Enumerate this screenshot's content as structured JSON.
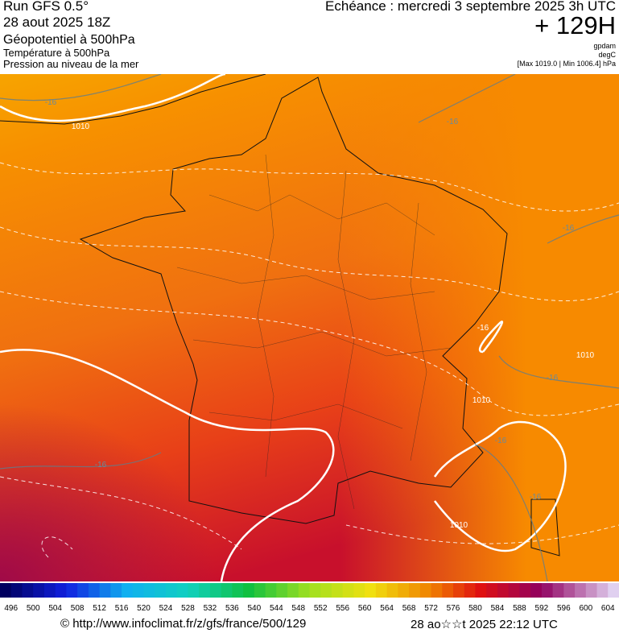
{
  "header": {
    "run": "Run GFS 0.5°",
    "date": "28 aout 2025 18Z",
    "field1": "Géopotentiel à 500hPa",
    "field2": "Température à 500hPa",
    "field3": "Pression au niveau de la mer",
    "echeance": "Echéance : mercredi 3 septembre 2025 3h UTC",
    "offset": "+ 129H",
    "unit1": "gpdam",
    "unit2": "degC",
    "pressure_range": "[Max 1019.0 | Min 1006.4] hPa"
  },
  "map": {
    "labels": [
      "-16",
      "1010",
      "-16",
      "-16",
      "-16",
      "1010",
      "-16",
      "1010",
      "-16",
      "-16",
      "1010",
      "-16"
    ]
  },
  "legend": {
    "values": [
      496,
      500,
      504,
      508,
      512,
      516,
      520,
      524,
      528,
      532,
      536,
      540,
      544,
      548,
      552,
      556,
      560,
      564,
      568,
      572,
      576,
      580,
      584,
      588,
      592,
      596,
      600,
      604
    ]
  },
  "footer": {
    "source": "© http://www.infoclimat.fr/z/gfs/france/500/129",
    "generated": "28 ao☆☆t 2025 22:12 UTC"
  }
}
